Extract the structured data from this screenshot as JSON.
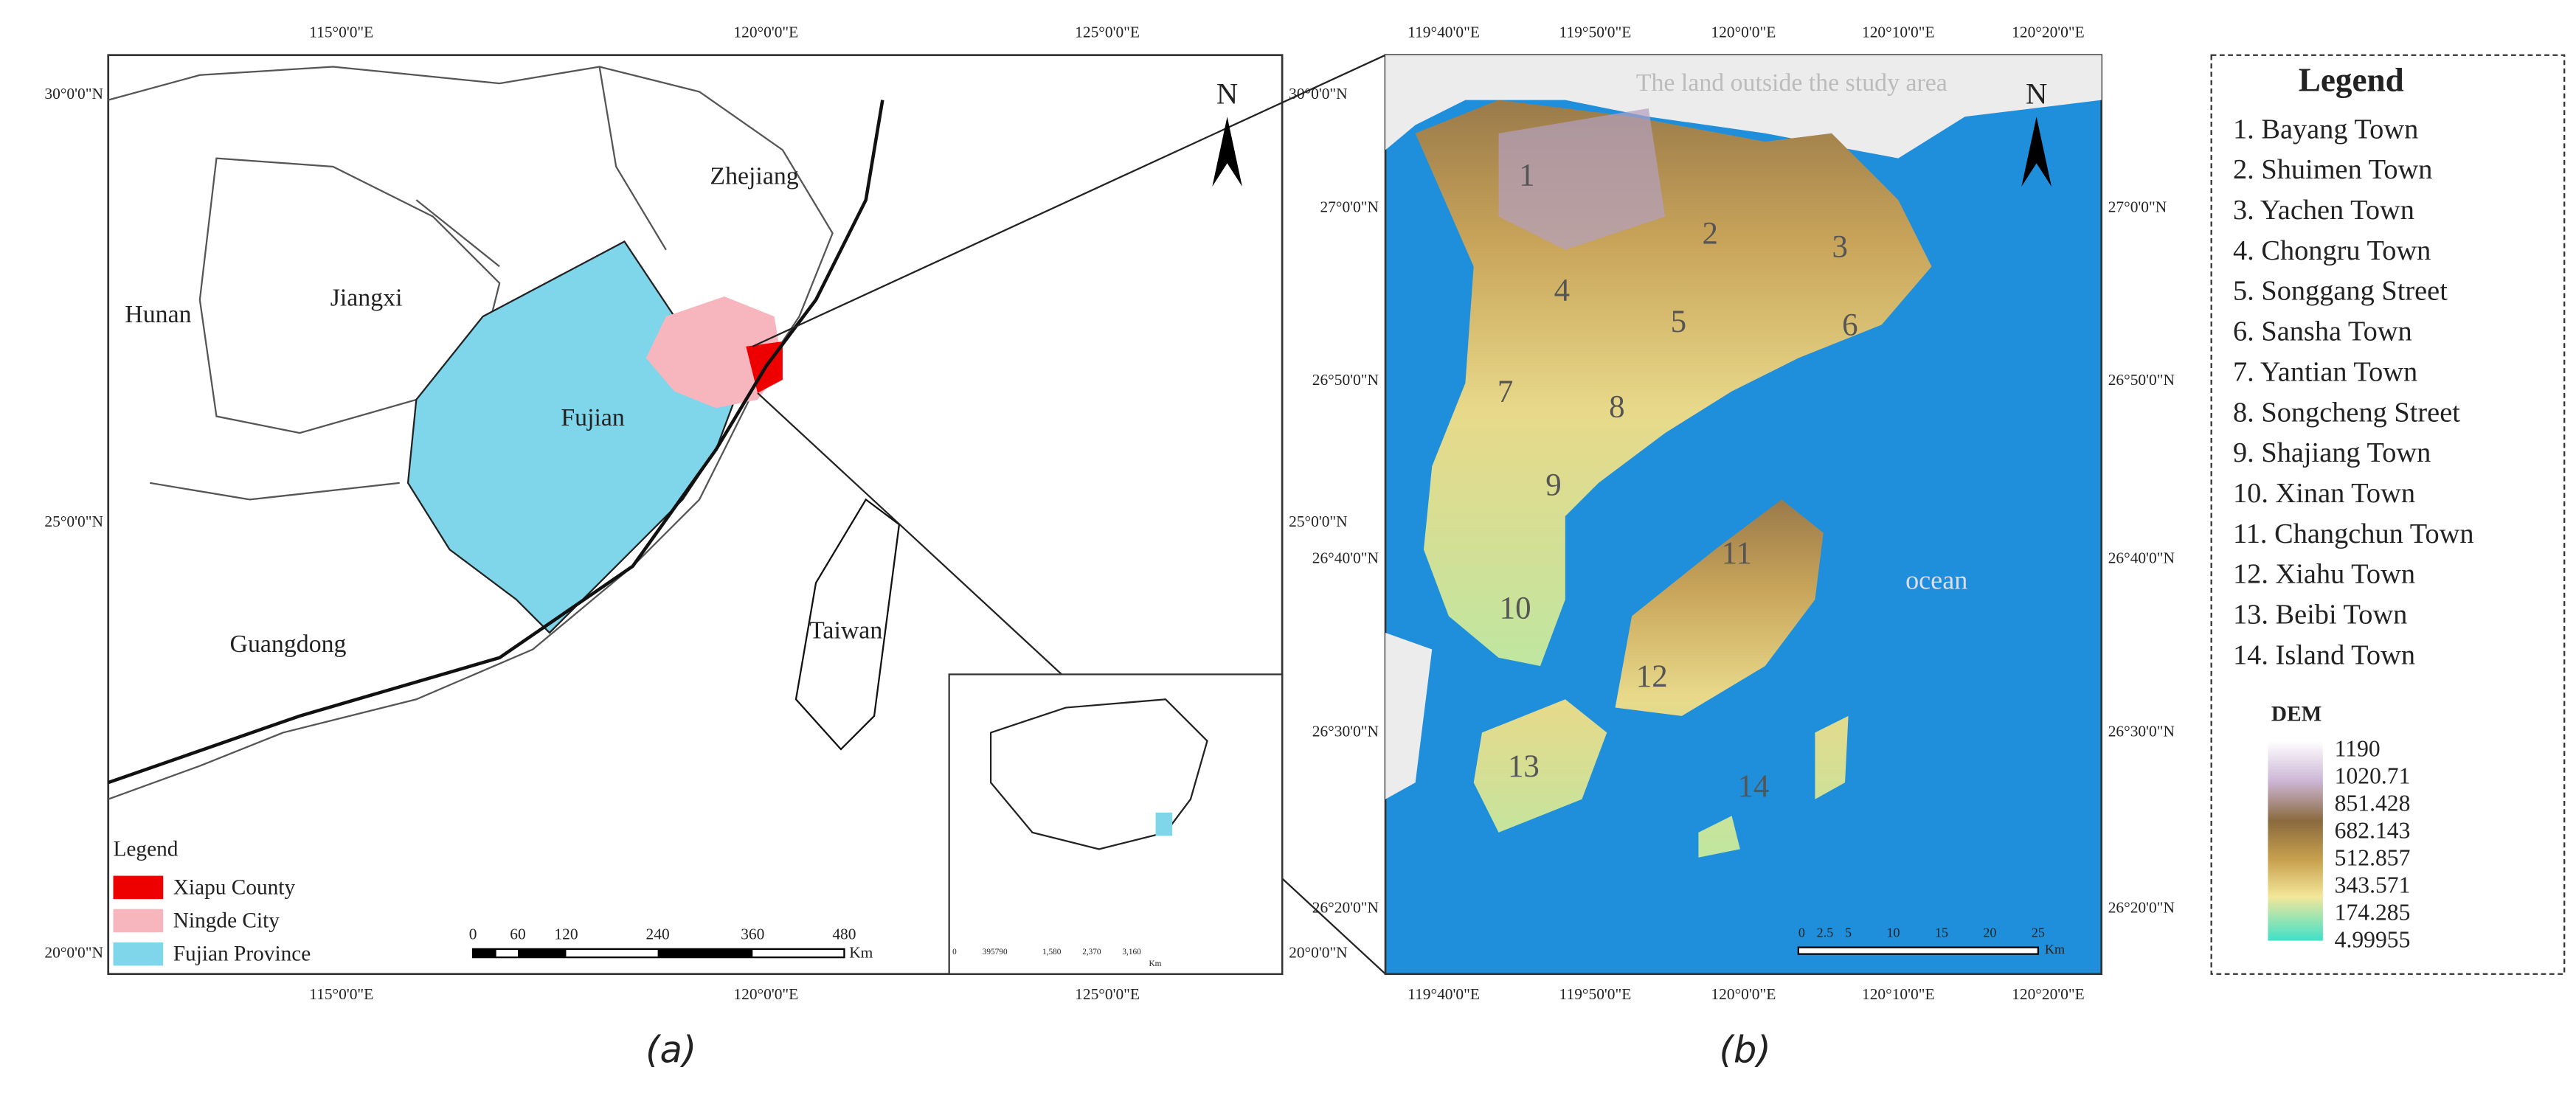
{
  "panel_a": {
    "caption": "(a)",
    "top_lon": [
      "115°0'0\"E",
      "120°0'0\"E",
      "125°0'0\"E"
    ],
    "bottom_lon": [
      "115°0'0\"E",
      "120°0'0\"E",
      "125°0'0\"E"
    ],
    "left_lat": [
      "30°0'0\"N",
      "25°0'0\"N",
      "20°0'0\"N"
    ],
    "right_lat": [
      "30°0'0\"N",
      "25°0'0\"N",
      "20°0'0\"N"
    ],
    "regions": [
      "Zhejiang",
      "Jiangxi",
      "Hunan",
      "Fujian",
      "Guangdong",
      "Taiwan"
    ],
    "north": "N",
    "legend": {
      "title": "Legend",
      "items": [
        "Xiapu County",
        "Ningde City",
        "Fujian Province"
      ]
    },
    "scale": {
      "ticks": [
        "0",
        "60",
        "120",
        "240",
        "360",
        "480"
      ],
      "unit": "Km"
    },
    "inset_scale": {
      "ticks": [
        "0",
        "395790",
        "1,580",
        "2,370",
        "3,160"
      ],
      "unit": "Km"
    }
  },
  "panel_b": {
    "caption": "(b)",
    "top_lon": [
      "119°40'0\"E",
      "119°50'0\"E",
      "120°0'0\"E",
      "120°10'0\"E",
      "120°20'0\"E"
    ],
    "bottom_lon": [
      "119°40'0\"E",
      "119°50'0\"E",
      "120°0'0\"E",
      "120°10'0\"E",
      "120°20'0\"E"
    ],
    "left_lat": [
      "27°0'0\"N",
      "26°50'0\"N",
      "26°40'0\"N",
      "26°30'0\"N",
      "26°20'0\"N"
    ],
    "right_lat": [
      "27°0'0\"N",
      "26°50'0\"N",
      "26°40'0\"N",
      "26°30'0\"N",
      "26°20'0\"N"
    ],
    "outside_note": "The land outside the study area",
    "ocean": "ocean",
    "north": "N",
    "towns": [
      "1",
      "2",
      "3",
      "4",
      "5",
      "6",
      "7",
      "8",
      "9",
      "10",
      "11",
      "12",
      "13",
      "14"
    ],
    "scale": {
      "ticks": [
        "0",
        "2.5",
        "5",
        "10",
        "15",
        "20",
        "25"
      ],
      "unit": "Km"
    }
  },
  "legend": {
    "title": "Legend",
    "items": [
      "1. Bayang Town",
      "2. Shuimen Town",
      "3. Yachen Town",
      "4. Chongru Town",
      "5. Songgang Street",
      "6. Sansha Town",
      "7. Yantian Town",
      "8. Songcheng Street",
      "9. Shajiang Town",
      "10. Xinan Town",
      "11. Changchun Town",
      "12. Xiahu Town",
      "13. Beibi Town",
      "14. Island Town"
    ],
    "dem_title": "DEM",
    "dem_labels": [
      "1190",
      "1020.71",
      "851.428",
      "682.143",
      "512.857",
      "343.571",
      "174.285",
      "4.99955"
    ]
  }
}
